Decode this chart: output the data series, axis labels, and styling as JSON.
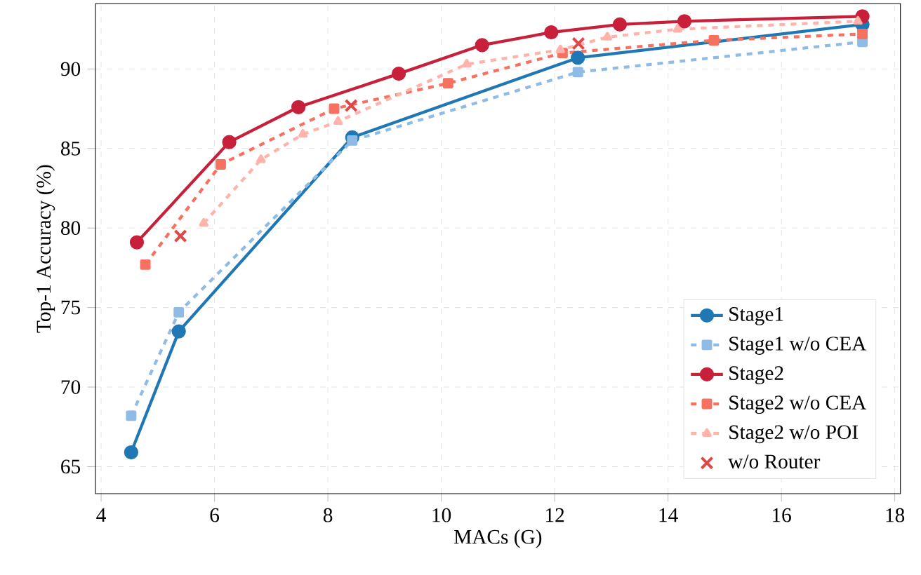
{
  "chart_data": {
    "type": "line",
    "xlabel": "MACs (G)",
    "ylabel": "Top-1 Accuracy (%)",
    "xlim": [
      3.9,
      18.1
    ],
    "xticks": [
      4,
      6,
      8,
      10,
      12,
      14,
      16,
      18
    ],
    "ylim": [
      63.3,
      94.1
    ],
    "yticks": [
      65,
      70,
      75,
      80,
      85,
      90
    ],
    "grid": true,
    "legend": "bottom right",
    "series": [
      {
        "name": "Stage1",
        "color": "#1f77b4",
        "marker": "circle",
        "line_style": "solid",
        "x": [
          4.53,
          5.37,
          8.43,
          12.41,
          17.43
        ],
        "values": [
          65.9,
          73.5,
          85.7,
          90.7,
          92.8
        ]
      },
      {
        "name": "Stage1 w/o CEA",
        "color": "#8fbce6",
        "marker": "square",
        "line_style": "dashed",
        "x": [
          4.53,
          5.37,
          8.43,
          12.41,
          17.43
        ],
        "values": [
          68.2,
          74.7,
          85.5,
          89.8,
          91.7
        ]
      },
      {
        "name": "Stage2",
        "color": "#c8203a",
        "marker": "circle",
        "line_style": "solid",
        "x": [
          4.63,
          6.26,
          7.48,
          9.25,
          10.72,
          11.94,
          13.15,
          14.29,
          17.43
        ],
        "values": [
          79.1,
          85.4,
          87.6,
          89.7,
          91.5,
          92.3,
          92.8,
          93.0,
          93.3
        ]
      },
      {
        "name": "Stage2 w/o CEA",
        "color": "#f87060",
        "marker": "square",
        "line_style": "dashed",
        "x": [
          4.78,
          6.11,
          8.11,
          10.12,
          12.14,
          14.81,
          17.43
        ],
        "values": [
          77.7,
          84.0,
          87.5,
          89.1,
          91.0,
          91.8,
          92.2
        ]
      },
      {
        "name": "Stage2 w/o POI",
        "color": "#ffb3aa",
        "marker": "triangle",
        "line_style": "dashed",
        "x": [
          5.81,
          6.82,
          7.56,
          8.18,
          10.45,
          12.1,
          12.93,
          14.17,
          17.35
        ],
        "values": [
          80.3,
          84.3,
          85.9,
          86.7,
          90.3,
          91.2,
          92.0,
          92.5,
          93.0
        ]
      },
      {
        "name": "w/o Router",
        "type": "scatter",
        "color": "#e04848",
        "marker": "cross",
        "x": [
          5.4,
          8.41,
          12.42
        ],
        "values": [
          79.5,
          87.7,
          91.6
        ]
      }
    ]
  }
}
